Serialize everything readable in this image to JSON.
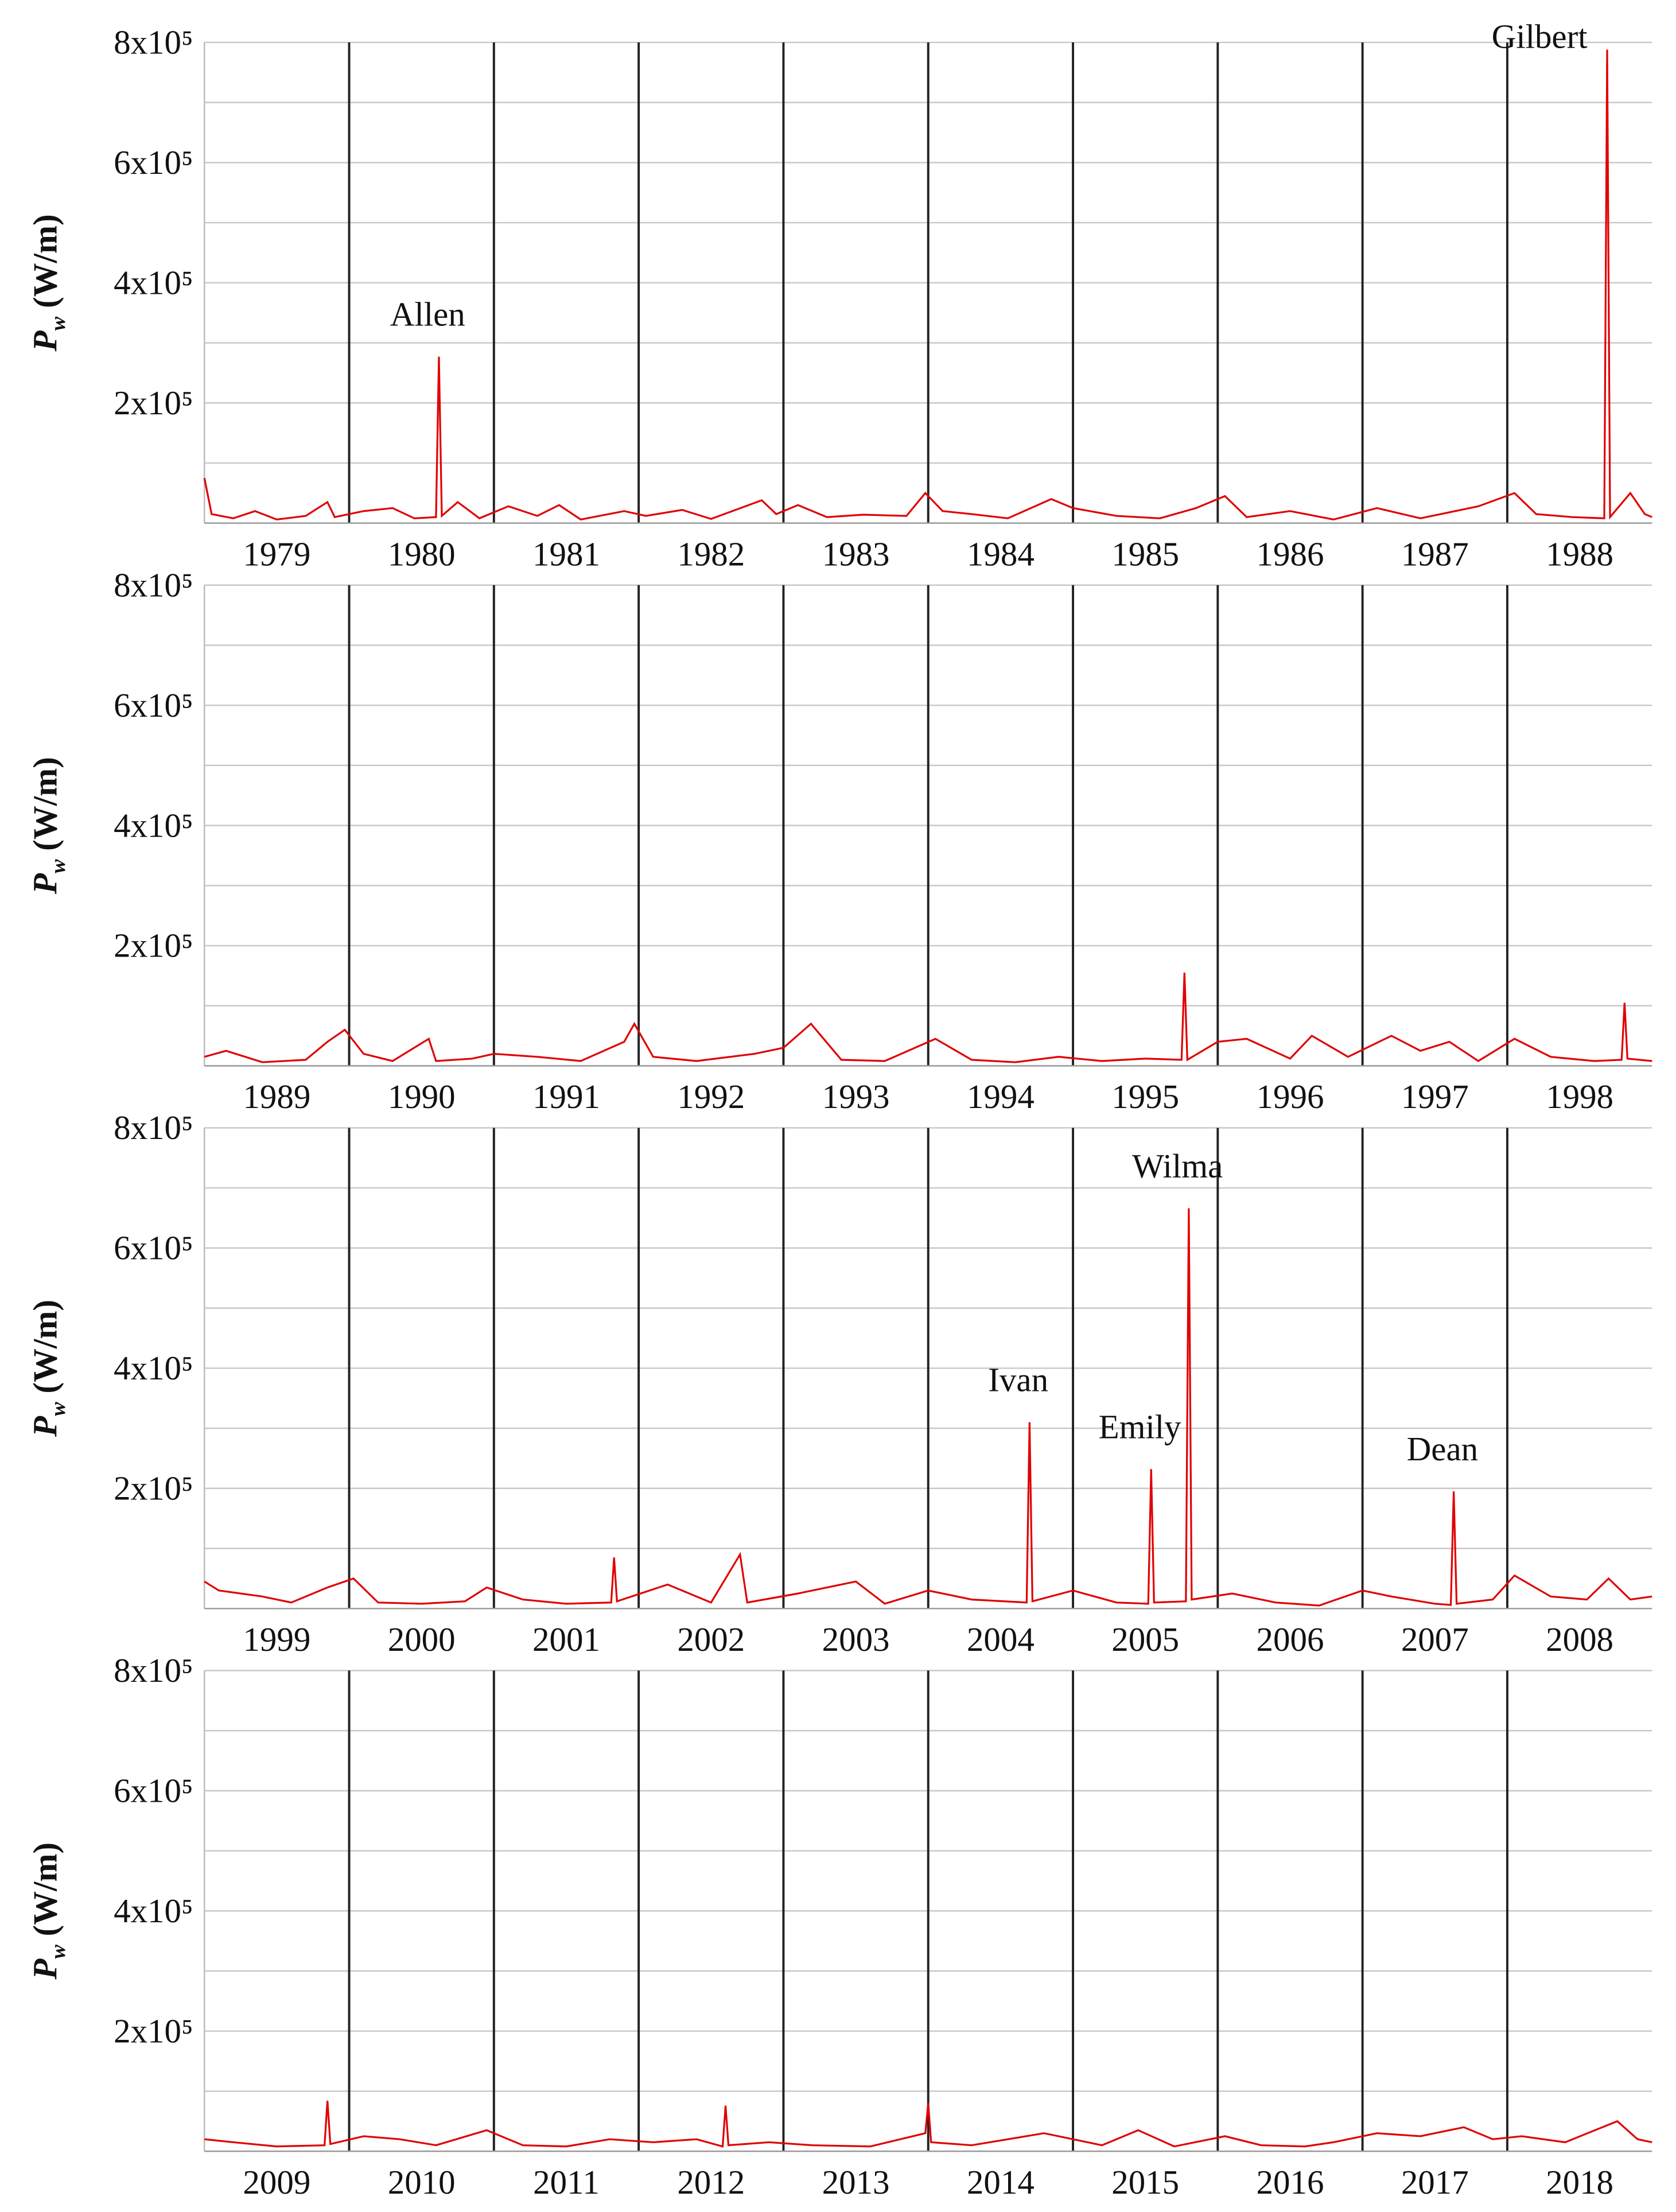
{
  "chart_data": [
    {
      "type": "line",
      "color": "#e00000",
      "ylabel": {
        "symbol": "P",
        "subscript": "w",
        "unit": "(W/m)"
      },
      "xlim": [
        1979,
        1989
      ],
      "xgrid": true,
      "xticks": [
        {
          "value": 1979.5,
          "label": "1979"
        },
        {
          "value": 1980.5,
          "label": "1980"
        },
        {
          "value": 1981.5,
          "label": "1981"
        },
        {
          "value": 1982.5,
          "label": "1982"
        },
        {
          "value": 1983.5,
          "label": "1983"
        },
        {
          "value": 1984.5,
          "label": "1984"
        },
        {
          "value": 1985.5,
          "label": "1985"
        },
        {
          "value": 1986.5,
          "label": "1986"
        },
        {
          "value": 1987.5,
          "label": "1987"
        },
        {
          "value": 1988.5,
          "label": "1988"
        }
      ],
      "ylim": [
        0,
        800000
      ],
      "yticks": [
        {
          "value": 200000,
          "label": "2x10⁵"
        },
        {
          "value": 400000,
          "label": "4x10⁵"
        },
        {
          "value": 600000,
          "label": "6x10⁵"
        },
        {
          "value": 800000,
          "label": "8x10⁵"
        }
      ],
      "minor_yticks": [
        100000,
        300000,
        500000,
        700000
      ],
      "x": [
        1979.0,
        1979.05,
        1979.2,
        1979.35,
        1979.5,
        1979.7,
        1979.85,
        1979.9,
        1980.1,
        1980.3,
        1980.45,
        1980.6,
        1980.62,
        1980.64,
        1980.75,
        1980.9,
        1981.1,
        1981.3,
        1981.45,
        1981.6,
        1981.9,
        1982.05,
        1982.3,
        1982.5,
        1982.85,
        1982.95,
        1983.1,
        1983.3,
        1983.55,
        1983.85,
        1983.98,
        1984.1,
        1984.3,
        1984.55,
        1984.85,
        1985.0,
        1985.3,
        1985.6,
        1985.85,
        1986.05,
        1986.2,
        1986.5,
        1986.8,
        1987.1,
        1987.4,
        1987.8,
        1988.05,
        1988.2,
        1988.45,
        1988.67,
        1988.69,
        1988.71,
        1988.85,
        1988.95,
        1989.0
      ],
      "values": [
        75000,
        15000,
        8000,
        20000,
        6000,
        12000,
        35000,
        10000,
        20000,
        25000,
        8000,
        10000,
        277000,
        12000,
        35000,
        8000,
        28000,
        12000,
        30000,
        6000,
        20000,
        12000,
        22000,
        7000,
        38000,
        15000,
        30000,
        10000,
        14000,
        12000,
        50000,
        20000,
        15000,
        8000,
        40000,
        25000,
        12000,
        8000,
        25000,
        45000,
        10000,
        20000,
        6000,
        25000,
        8000,
        28000,
        50000,
        15000,
        10000,
        8000,
        788000,
        10000,
        50000,
        15000,
        10000
      ],
      "annotations": [
        {
          "text": "Allen",
          "x": 1980.62
        },
        {
          "text": "Gilbert",
          "x": 1988.69
        }
      ]
    },
    {
      "type": "line",
      "color": "#e00000",
      "ylabel": {
        "symbol": "P",
        "subscript": "w",
        "unit": "(W/m)"
      },
      "xlim": [
        1989,
        1999
      ],
      "xgrid": true,
      "xticks": [
        {
          "value": 1989.5,
          "label": "1989"
        },
        {
          "value": 1990.5,
          "label": "1990"
        },
        {
          "value": 1991.5,
          "label": "1991"
        },
        {
          "value": 1992.5,
          "label": "1992"
        },
        {
          "value": 1993.5,
          "label": "1993"
        },
        {
          "value": 1994.5,
          "label": "1994"
        },
        {
          "value": 1995.5,
          "label": "1995"
        },
        {
          "value": 1996.5,
          "label": "1996"
        },
        {
          "value": 1997.5,
          "label": "1997"
        },
        {
          "value": 1998.5,
          "label": "1998"
        }
      ],
      "ylim": [
        0,
        800000
      ],
      "yticks": [
        {
          "value": 200000,
          "label": "2x10⁵"
        },
        {
          "value": 400000,
          "label": "4x10⁵"
        },
        {
          "value": 600000,
          "label": "6x10⁵"
        },
        {
          "value": 800000,
          "label": "8x10⁵"
        }
      ],
      "minor_yticks": [
        100000,
        300000,
        500000,
        700000
      ],
      "x": [
        1989.0,
        1989.15,
        1989.4,
        1989.7,
        1989.85,
        1989.97,
        1990.1,
        1990.3,
        1990.55,
        1990.6,
        1990.85,
        1991.0,
        1991.3,
        1991.6,
        1991.9,
        1991.97,
        1992.1,
        1992.4,
        1992.8,
        1993.0,
        1993.19,
        1993.4,
        1993.7,
        1994.05,
        1994.3,
        1994.6,
        1994.9,
        1995.2,
        1995.5,
        1995.75,
        1995.77,
        1995.79,
        1996.0,
        1996.2,
        1996.5,
        1996.65,
        1996.9,
        1997.2,
        1997.4,
        1997.6,
        1997.8,
        1998.05,
        1998.3,
        1998.6,
        1998.79,
        1998.81,
        1998.83,
        1999.0
      ],
      "values": [
        15000,
        25000,
        6000,
        10000,
        40000,
        60000,
        20000,
        8000,
        45000,
        8000,
        12000,
        20000,
        15000,
        8000,
        40000,
        70000,
        15000,
        8000,
        20000,
        30000,
        70000,
        10000,
        8000,
        45000,
        10000,
        6000,
        15000,
        8000,
        12000,
        10000,
        155000,
        10000,
        40000,
        45000,
        12000,
        50000,
        15000,
        50000,
        25000,
        40000,
        8000,
        45000,
        15000,
        8000,
        10000,
        105000,
        12000,
        8000
      ],
      "annotations": []
    },
    {
      "type": "line",
      "color": "#e00000",
      "ylabel": {
        "symbol": "P",
        "subscript": "w",
        "unit": "(W/m)"
      },
      "xlim": [
        1999,
        2009
      ],
      "xgrid": true,
      "xticks": [
        {
          "value": 1999.5,
          "label": "1999"
        },
        {
          "value": 2000.5,
          "label": "2000"
        },
        {
          "value": 2001.5,
          "label": "2001"
        },
        {
          "value": 2002.5,
          "label": "2002"
        },
        {
          "value": 2003.5,
          "label": "2003"
        },
        {
          "value": 2004.5,
          "label": "2004"
        },
        {
          "value": 2005.5,
          "label": "2005"
        },
        {
          "value": 2006.5,
          "label": "2006"
        },
        {
          "value": 2007.5,
          "label": "2007"
        },
        {
          "value": 2008.5,
          "label": "2008"
        }
      ],
      "ylim": [
        0,
        800000
      ],
      "yticks": [
        {
          "value": 200000,
          "label": "2x10⁵"
        },
        {
          "value": 400000,
          "label": "4x10⁵"
        },
        {
          "value": 600000,
          "label": "6x10⁵"
        },
        {
          "value": 800000,
          "label": "8x10⁵"
        }
      ],
      "minor_yticks": [
        100000,
        300000,
        500000,
        700000
      ],
      "x": [
        1999.0,
        1999.1,
        1999.4,
        1999.6,
        1999.85,
        2000.03,
        2000.2,
        2000.5,
        2000.8,
        2000.95,
        2001.2,
        2001.5,
        2001.81,
        2001.83,
        2001.85,
        2002.2,
        2002.5,
        2002.7,
        2002.75,
        2003.1,
        2003.5,
        2003.7,
        2004.0,
        2004.3,
        2004.68,
        2004.7,
        2004.72,
        2005.0,
        2005.3,
        2005.52,
        2005.54,
        2005.56,
        2005.78,
        2005.8,
        2005.82,
        2006.1,
        2006.4,
        2006.7,
        2007.0,
        2007.2,
        2007.5,
        2007.61,
        2007.63,
        2007.65,
        2007.9,
        2008.05,
        2008.3,
        2008.55,
        2008.7,
        2008.85,
        2009.0
      ],
      "values": [
        45000,
        30000,
        20000,
        10000,
        35000,
        50000,
        10000,
        8000,
        12000,
        35000,
        15000,
        8000,
        10000,
        85000,
        12000,
        40000,
        10000,
        90000,
        10000,
        25000,
        45000,
        8000,
        30000,
        15000,
        10000,
        310000,
        12000,
        30000,
        10000,
        8000,
        232000,
        10000,
        12000,
        666000,
        15000,
        25000,
        10000,
        5000,
        30000,
        20000,
        8000,
        6000,
        195000,
        8000,
        15000,
        55000,
        20000,
        15000,
        50000,
        15000,
        20000
      ],
      "annotations": [
        {
          "text": "Ivan",
          "x": 2004.7
        },
        {
          "text": "Emily",
          "x": 2005.54
        },
        {
          "text": "Wilma",
          "x": 2005.8
        },
        {
          "text": "Dean",
          "x": 2007.63
        }
      ]
    },
    {
      "type": "line",
      "color": "#e00000",
      "ylabel": {
        "symbol": "P",
        "subscript": "w",
        "unit": "(W/m)"
      },
      "xlim": [
        2009,
        2019
      ],
      "xgrid": true,
      "xticks": [
        {
          "value": 2009.5,
          "label": "2009"
        },
        {
          "value": 2010.5,
          "label": "2010"
        },
        {
          "value": 2011.5,
          "label": "2011"
        },
        {
          "value": 2012.5,
          "label": "2012"
        },
        {
          "value": 2013.5,
          "label": "2013"
        },
        {
          "value": 2014.5,
          "label": "2014"
        },
        {
          "value": 2015.5,
          "label": "2015"
        },
        {
          "value": 2016.5,
          "label": "2016"
        },
        {
          "value": 2017.5,
          "label": "2017"
        },
        {
          "value": 2018.5,
          "label": "2018"
        }
      ],
      "ylim": [
        0,
        800000
      ],
      "yticks": [
        {
          "value": 200000,
          "label": "2x10⁵"
        },
        {
          "value": 400000,
          "label": "4x10⁵"
        },
        {
          "value": 600000,
          "label": "6x10⁵"
        },
        {
          "value": 800000,
          "label": "8x10⁵"
        }
      ],
      "minor_yticks": [
        100000,
        300000,
        500000,
        700000
      ],
      "x": [
        2009.0,
        2009.2,
        2009.5,
        2009.83,
        2009.85,
        2009.87,
        2010.1,
        2010.35,
        2010.6,
        2010.95,
        2011.2,
        2011.5,
        2011.8,
        2012.1,
        2012.4,
        2012.58,
        2012.6,
        2012.62,
        2012.9,
        2013.2,
        2013.6,
        2013.98,
        2014.0,
        2014.02,
        2014.3,
        2014.8,
        2015.2,
        2015.45,
        2015.7,
        2016.05,
        2016.3,
        2016.6,
        2016.8,
        2017.1,
        2017.4,
        2017.6,
        2017.7,
        2017.9,
        2018.1,
        2018.4,
        2018.76,
        2018.9,
        2019.0
      ],
      "values": [
        20000,
        15000,
        8000,
        10000,
        84000,
        12000,
        25000,
        20000,
        10000,
        35000,
        10000,
        8000,
        20000,
        15000,
        20000,
        8000,
        76000,
        10000,
        15000,
        10000,
        8000,
        30000,
        80000,
        15000,
        10000,
        30000,
        10000,
        35000,
        8000,
        25000,
        10000,
        8000,
        15000,
        30000,
        25000,
        35000,
        40000,
        20000,
        25000,
        15000,
        50000,
        20000,
        15000
      ],
      "annotations": []
    }
  ]
}
